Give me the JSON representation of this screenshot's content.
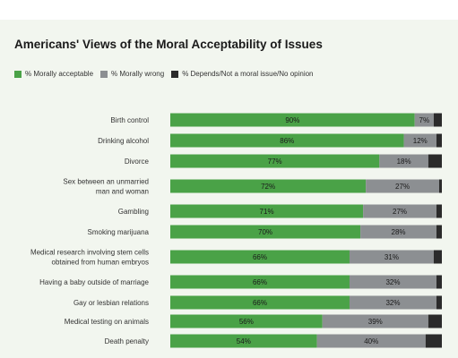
{
  "colors": {
    "acceptable": "#4aa247",
    "wrong": "#8c8f92",
    "depends": "#2b2b2b"
  },
  "chart_data": {
    "type": "bar",
    "orientation": "horizontal",
    "stacked": true,
    "title": "Americans' Views of the Moral Acceptability of Issues",
    "legend_position": "top-left",
    "grid": false,
    "xlim": [
      0,
      100
    ],
    "categories": [
      "Birth control",
      "Drinking alcohol",
      "Divorce",
      "Sex between an unmarried man and woman",
      "Gambling",
      "Smoking marijuana",
      "Medical research involving stem cells obtained from human embryos",
      "Having a baby outside of marriage",
      "Gay or lesbian relations",
      "Medical testing on animals",
      "Death penalty"
    ],
    "category_lines": [
      [
        "Birth control"
      ],
      [
        "Drinking alcohol"
      ],
      [
        "Divorce"
      ],
      [
        "Sex between an unmarried",
        "man and woman"
      ],
      [
        "Gambling"
      ],
      [
        "Smoking marijuana"
      ],
      [
        "Medical research involving stem cells",
        "obtained from human embryos"
      ],
      [
        "Having a baby outside of marriage"
      ],
      [
        "Gay or lesbian relations"
      ],
      [
        "Medical testing on animals"
      ],
      [
        "Death penalty"
      ]
    ],
    "series": [
      {
        "name": "% Morally acceptable",
        "values": [
          90,
          86,
          77,
          72,
          71,
          70,
          66,
          66,
          66,
          56,
          54
        ]
      },
      {
        "name": "% Morally wrong",
        "values": [
          7,
          12,
          18,
          27,
          27,
          28,
          31,
          32,
          32,
          39,
          40
        ]
      },
      {
        "name": "% Depends/Not a moral issue/No opinion",
        "values": [
          3,
          2,
          5,
          1,
          2,
          2,
          3,
          2,
          2,
          5,
          6
        ]
      }
    ],
    "data_labels": [
      [
        "90%",
        "86%",
        "77%",
        "72%",
        "71%",
        "70%",
        "66%",
        "66%",
        "66%",
        "56%",
        "54%"
      ],
      [
        "7%",
        "12%",
        "18%",
        "27%",
        "27%",
        "28%",
        "31%",
        "32%",
        "32%",
        "39%",
        "40%"
      ]
    ]
  }
}
